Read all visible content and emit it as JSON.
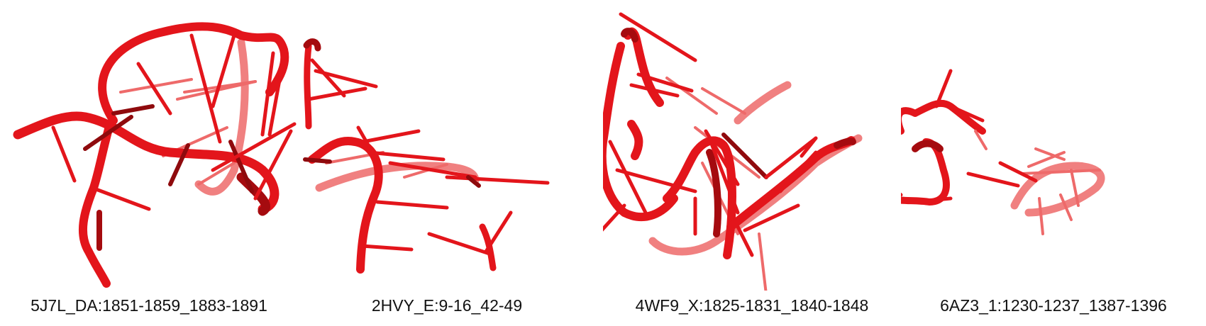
{
  "panels": [
    {
      "label": "5J7L_DA:1851-1859_1883-1891"
    },
    {
      "label": "2HVY_E:9-16_42-49"
    },
    {
      "label": "4WF9_X:1825-1831_1840-1848"
    },
    {
      "label": "6AZ3_1:1230-1237_1387-1396"
    }
  ],
  "colors": {
    "rna": "#e3151b",
    "rna_dark": "#a50b0f",
    "rna_faded": "#f08080",
    "caption": "#111111"
  }
}
